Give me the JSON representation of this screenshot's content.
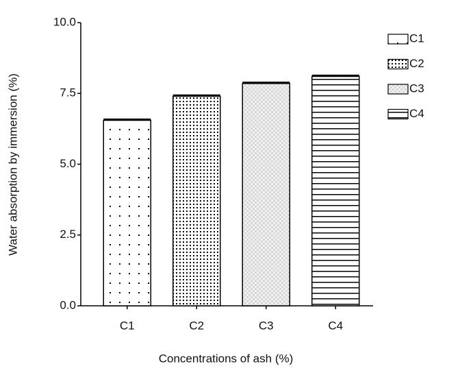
{
  "chart_data": {
    "type": "bar",
    "xlabel": "Concentrations of ash (%)",
    "ylabel": "Water absorption by immersion (%)",
    "categories": [
      "C1",
      "C2",
      "C3",
      "C4"
    ],
    "values": [
      6.55,
      7.4,
      7.85,
      8.1
    ],
    "errors": [
      0.04,
      0.04,
      0.04,
      0.04
    ],
    "ylim": [
      0,
      10
    ],
    "yticks": [
      {
        "value": 0,
        "label": "0.0"
      },
      2.5,
      {
        "value": 5,
        "label": "5.0"
      },
      7.5,
      {
        "value": 10,
        "label": "10.0"
      }
    ],
    "color": "#000000"
  }
}
